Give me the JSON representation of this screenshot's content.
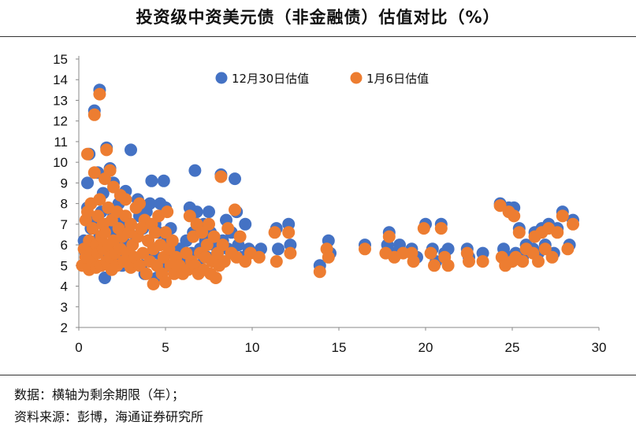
{
  "chart_data": {
    "type": "scatter",
    "title": "投资级中资美元债（非金融债）估值对比（%）",
    "xlabel": "",
    "ylabel": "",
    "xlim": [
      0,
      30
    ],
    "ylim": [
      2,
      15
    ],
    "x_ticks": [
      "0",
      "5",
      "10",
      "15",
      "20",
      "25",
      "30"
    ],
    "y_ticks": [
      "2",
      "3",
      "4",
      "5",
      "6",
      "7",
      "8",
      "9",
      "10",
      "11",
      "12",
      "13",
      "14",
      "15"
    ],
    "grid": false,
    "legend_position": "top",
    "series": [
      {
        "name": "12月30日估值",
        "color": "#4472C4",
        "points": [
          [
            0.3,
            6.2
          ],
          [
            0.4,
            5.6
          ],
          [
            0.4,
            5.0
          ],
          [
            0.5,
            7.8
          ],
          [
            0.5,
            9.0
          ],
          [
            0.6,
            10.4
          ],
          [
            0.6,
            5.4
          ],
          [
            0.7,
            6.8
          ],
          [
            0.7,
            5.2
          ],
          [
            0.8,
            6.0
          ],
          [
            0.9,
            12.5
          ],
          [
            0.9,
            7.2
          ],
          [
            1.0,
            5.6
          ],
          [
            1.1,
            9.5
          ],
          [
            1.2,
            13.5
          ],
          [
            1.2,
            6.4
          ],
          [
            1.3,
            7.6
          ],
          [
            1.3,
            5.0
          ],
          [
            1.4,
            8.5
          ],
          [
            1.5,
            4.4
          ],
          [
            1.5,
            6.0
          ],
          [
            1.6,
            10.7
          ],
          [
            1.6,
            7.0
          ],
          [
            1.7,
            5.6
          ],
          [
            1.8,
            9.7
          ],
          [
            1.9,
            6.6
          ],
          [
            1.9,
            5.2
          ],
          [
            2.0,
            7.4
          ],
          [
            2.0,
            9.0
          ],
          [
            2.1,
            6.2
          ],
          [
            2.2,
            5.4
          ],
          [
            2.3,
            8.0
          ],
          [
            2.4,
            6.8
          ],
          [
            2.5,
            5.0
          ],
          [
            2.6,
            7.2
          ],
          [
            2.7,
            8.6
          ],
          [
            2.8,
            6.0
          ],
          [
            2.9,
            5.6
          ],
          [
            3.0,
            10.6
          ],
          [
            3.0,
            7.0
          ],
          [
            3.1,
            5.4
          ],
          [
            3.3,
            6.4
          ],
          [
            3.4,
            8.2
          ],
          [
            3.5,
            7.4
          ],
          [
            3.6,
            5.0
          ],
          [
            3.7,
            6.8
          ],
          [
            3.8,
            4.6
          ],
          [
            3.9,
            7.6
          ],
          [
            4.0,
            6.2
          ],
          [
            4.1,
            8.0
          ],
          [
            4.2,
            9.1
          ],
          [
            4.3,
            5.6
          ],
          [
            4.4,
            7.0
          ],
          [
            4.5,
            4.4
          ],
          [
            4.6,
            6.6
          ],
          [
            4.7,
            8.0
          ],
          [
            4.8,
            5.2
          ],
          [
            4.9,
            9.1
          ],
          [
            5.0,
            7.8
          ],
          [
            5.1,
            6.2
          ],
          [
            5.2,
            5.0
          ],
          [
            5.3,
            6.8
          ],
          [
            5.5,
            5.6
          ],
          [
            5.8,
            5.8
          ],
          [
            6.0,
            5.2
          ],
          [
            6.2,
            6.2
          ],
          [
            6.4,
            7.8
          ],
          [
            6.5,
            5.6
          ],
          [
            6.6,
            6.6
          ],
          [
            6.7,
            9.6
          ],
          [
            6.8,
            7.6
          ],
          [
            6.9,
            5.0
          ],
          [
            7.0,
            5.8
          ],
          [
            7.2,
            7.0
          ],
          [
            7.3,
            6.2
          ],
          [
            7.4,
            5.4
          ],
          [
            7.5,
            7.6
          ],
          [
            7.6,
            6.6
          ],
          [
            7.8,
            6.0
          ],
          [
            8.0,
            5.6
          ],
          [
            8.2,
            9.4
          ],
          [
            8.3,
            6.2
          ],
          [
            8.5,
            7.2
          ],
          [
            8.6,
            5.8
          ],
          [
            8.8,
            6.6
          ],
          [
            9.0,
            9.2
          ],
          [
            9.1,
            7.6
          ],
          [
            9.2,
            6.0
          ],
          [
            9.4,
            5.4
          ],
          [
            9.6,
            7.0
          ],
          [
            9.8,
            5.8
          ],
          [
            10.2,
            5.6
          ],
          [
            10.5,
            5.8
          ],
          [
            11.4,
            6.8
          ],
          [
            11.5,
            5.8
          ],
          [
            12.1,
            7.0
          ],
          [
            12.2,
            6.0
          ],
          [
            13.9,
            5.0
          ],
          [
            14.4,
            6.2
          ],
          [
            14.5,
            5.6
          ],
          [
            16.5,
            6.0
          ],
          [
            17.8,
            6.0
          ],
          [
            17.9,
            6.6
          ],
          [
            18.1,
            5.6
          ],
          [
            18.5,
            6.0
          ],
          [
            19.2,
            5.8
          ],
          [
            19.5,
            5.4
          ],
          [
            20.0,
            7.0
          ],
          [
            20.4,
            5.8
          ],
          [
            20.6,
            5.2
          ],
          [
            20.9,
            7.0
          ],
          [
            21.1,
            5.6
          ],
          [
            21.3,
            5.8
          ],
          [
            22.4,
            5.8
          ],
          [
            22.5,
            5.4
          ],
          [
            23.3,
            5.6
          ],
          [
            24.3,
            8.0
          ],
          [
            24.5,
            5.8
          ],
          [
            24.6,
            5.2
          ],
          [
            24.8,
            7.8
          ],
          [
            24.9,
            5.4
          ],
          [
            25.1,
            7.8
          ],
          [
            25.2,
            5.6
          ],
          [
            25.4,
            6.8
          ],
          [
            25.6,
            5.4
          ],
          [
            25.8,
            6.0
          ],
          [
            26.2,
            5.8
          ],
          [
            26.3,
            6.6
          ],
          [
            26.5,
            5.6
          ],
          [
            26.7,
            6.8
          ],
          [
            26.9,
            6.0
          ],
          [
            27.1,
            7.0
          ],
          [
            27.4,
            5.6
          ],
          [
            27.6,
            6.8
          ],
          [
            27.9,
            7.6
          ],
          [
            28.3,
            6.0
          ],
          [
            28.5,
            7.2
          ]
        ]
      },
      {
        "name": "1月6日估值",
        "color": "#ED7D31",
        "points": [
          [
            0.2,
            5.0
          ],
          [
            0.3,
            5.8
          ],
          [
            0.4,
            7.2
          ],
          [
            0.4,
            5.4
          ],
          [
            0.5,
            10.4
          ],
          [
            0.5,
            7.6
          ],
          [
            0.6,
            6.2
          ],
          [
            0.6,
            4.8
          ],
          [
            0.7,
            5.6
          ],
          [
            0.7,
            8.0
          ],
          [
            0.8,
            6.8
          ],
          [
            0.8,
            5.2
          ],
          [
            0.9,
            12.3
          ],
          [
            0.9,
            9.5
          ],
          [
            1.0,
            6.0
          ],
          [
            1.0,
            4.9
          ],
          [
            1.1,
            7.4
          ],
          [
            1.1,
            5.6
          ],
          [
            1.2,
            13.3
          ],
          [
            1.2,
            8.2
          ],
          [
            1.3,
            6.4
          ],
          [
            1.3,
            5.0
          ],
          [
            1.4,
            7.0
          ],
          [
            1.4,
            5.8
          ],
          [
            1.5,
            9.2
          ],
          [
            1.5,
            6.6
          ],
          [
            1.6,
            10.6
          ],
          [
            1.6,
            5.2
          ],
          [
            1.7,
            7.8
          ],
          [
            1.7,
            6.0
          ],
          [
            1.8,
            9.6
          ],
          [
            1.8,
            5.4
          ],
          [
            1.9,
            7.2
          ],
          [
            1.9,
            4.8
          ],
          [
            2.0,
            8.8
          ],
          [
            2.0,
            6.2
          ],
          [
            2.1,
            5.6
          ],
          [
            2.2,
            7.6
          ],
          [
            2.2,
            5.0
          ],
          [
            2.3,
            6.8
          ],
          [
            2.4,
            8.4
          ],
          [
            2.4,
            5.8
          ],
          [
            2.5,
            6.4
          ],
          [
            2.6,
            5.2
          ],
          [
            2.7,
            7.4
          ],
          [
            2.7,
            8.2
          ],
          [
            2.8,
            5.6
          ],
          [
            2.9,
            6.6
          ],
          [
            3.0,
            4.9
          ],
          [
            3.0,
            7.0
          ],
          [
            3.1,
            6.0
          ],
          [
            3.2,
            5.4
          ],
          [
            3.3,
            7.8
          ],
          [
            3.4,
            6.4
          ],
          [
            3.5,
            5.0
          ],
          [
            3.5,
            8.0
          ],
          [
            3.6,
            6.8
          ],
          [
            3.7,
            5.6
          ],
          [
            3.8,
            7.2
          ],
          [
            3.9,
            4.6
          ],
          [
            4.0,
            6.2
          ],
          [
            4.1,
            5.2
          ],
          [
            4.2,
            7.0
          ],
          [
            4.3,
            4.1
          ],
          [
            4.3,
            5.8
          ],
          [
            4.4,
            6.6
          ],
          [
            4.5,
            5.0
          ],
          [
            4.6,
            7.4
          ],
          [
            4.7,
            6.0
          ],
          [
            4.8,
            4.6
          ],
          [
            4.9,
            5.4
          ],
          [
            5.0,
            6.6
          ],
          [
            5.0,
            4.2
          ],
          [
            5.1,
            7.6
          ],
          [
            5.2,
            5.8
          ],
          [
            5.3,
            5.0
          ],
          [
            5.4,
            6.2
          ],
          [
            5.5,
            4.6
          ],
          [
            5.6,
            5.4
          ],
          [
            5.8,
            5.0
          ],
          [
            6.0,
            4.6
          ],
          [
            6.2,
            5.6
          ],
          [
            6.3,
            4.8
          ],
          [
            6.4,
            7.4
          ],
          [
            6.5,
            5.2
          ],
          [
            6.6,
            6.4
          ],
          [
            6.7,
            5.0
          ],
          [
            6.8,
            7.0
          ],
          [
            6.9,
            4.6
          ],
          [
            7.0,
            5.6
          ],
          [
            7.1,
            6.6
          ],
          [
            7.2,
            4.8
          ],
          [
            7.3,
            5.4
          ],
          [
            7.4,
            6.0
          ],
          [
            7.5,
            7.0
          ],
          [
            7.6,
            4.6
          ],
          [
            7.7,
            5.2
          ],
          [
            7.8,
            6.4
          ],
          [
            7.9,
            4.4
          ],
          [
            8.0,
            5.6
          ],
          [
            8.1,
            5.0
          ],
          [
            8.2,
            9.3
          ],
          [
            8.3,
            6.0
          ],
          [
            8.4,
            5.2
          ],
          [
            8.6,
            6.8
          ],
          [
            8.8,
            5.6
          ],
          [
            9.0,
            7.7
          ],
          [
            9.1,
            5.4
          ],
          [
            9.3,
            6.4
          ],
          [
            9.6,
            5.2
          ],
          [
            9.9,
            5.6
          ],
          [
            10.4,
            5.4
          ],
          [
            11.3,
            6.6
          ],
          [
            11.4,
            5.2
          ],
          [
            12.1,
            6.6
          ],
          [
            12.2,
            5.6
          ],
          [
            13.9,
            4.7
          ],
          [
            14.3,
            5.8
          ],
          [
            14.4,
            5.4
          ],
          [
            16.5,
            5.8
          ],
          [
            17.7,
            5.6
          ],
          [
            17.9,
            6.4
          ],
          [
            18.2,
            5.4
          ],
          [
            18.7,
            5.6
          ],
          [
            19.2,
            5.6
          ],
          [
            19.3,
            5.2
          ],
          [
            19.9,
            6.8
          ],
          [
            20.3,
            5.6
          ],
          [
            20.5,
            5.0
          ],
          [
            20.9,
            6.8
          ],
          [
            21.1,
            5.4
          ],
          [
            21.3,
            5.0
          ],
          [
            22.4,
            5.6
          ],
          [
            22.5,
            5.2
          ],
          [
            23.3,
            5.2
          ],
          [
            24.3,
            7.9
          ],
          [
            24.4,
            5.4
          ],
          [
            24.6,
            5.0
          ],
          [
            24.8,
            7.6
          ],
          [
            25.0,
            5.2
          ],
          [
            25.1,
            7.4
          ],
          [
            25.2,
            5.4
          ],
          [
            25.4,
            6.6
          ],
          [
            25.6,
            5.2
          ],
          [
            25.8,
            5.8
          ],
          [
            26.2,
            5.6
          ],
          [
            26.3,
            6.4
          ],
          [
            26.5,
            5.2
          ],
          [
            26.7,
            6.6
          ],
          [
            26.9,
            5.8
          ],
          [
            27.1,
            6.8
          ],
          [
            27.3,
            5.4
          ],
          [
            27.6,
            6.6
          ],
          [
            27.9,
            7.4
          ],
          [
            28.2,
            5.8
          ],
          [
            28.5,
            7.0
          ]
        ]
      }
    ]
  },
  "footnotes": {
    "data_note": "数据：横轴为剩余期限（年）；",
    "source": "资料来源：彭博，海通证券研究所"
  }
}
